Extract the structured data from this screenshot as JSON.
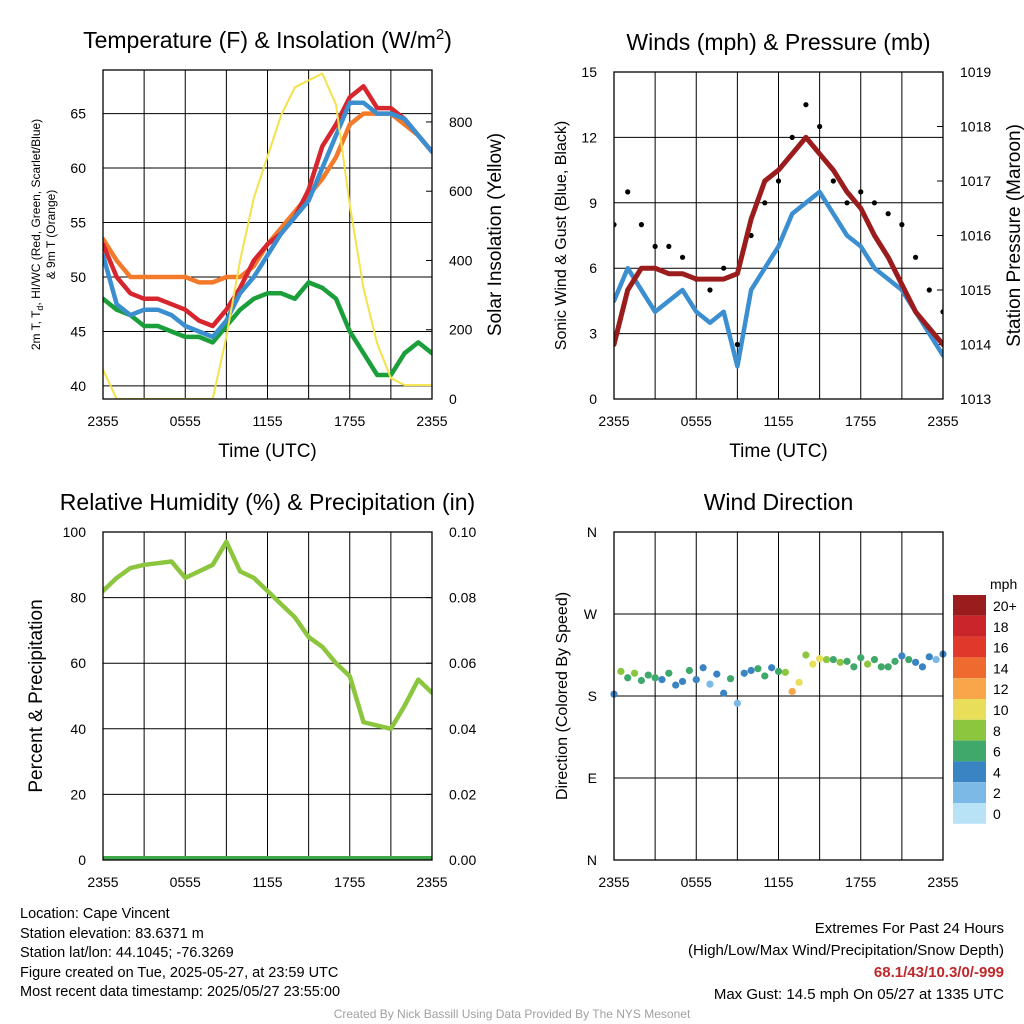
{
  "time_ticks": [
    "2355",
    "0555",
    "1155",
    "1755",
    "2355"
  ],
  "chart_data": [
    {
      "id": "temperature",
      "type": "line",
      "title": "Temperature (F) & Insolation (W/m",
      "title_sup": "2",
      "title_end": ")",
      "xlabel": "Time (UTC)",
      "ylabel_left": [
        "2m T, T",
        "d",
        ", HI/WC (Red, Green, Scarlet/Blue)",
        "& 9m T (Orange)"
      ],
      "ylabel_right": "Solar Insolation (Yellow)",
      "ylim": [
        38.8,
        69
      ],
      "yticks": [
        "40",
        "45",
        "50",
        "55",
        "60",
        "65"
      ],
      "y2lim": [
        0,
        950
      ],
      "y2ticks": [
        "0",
        "200",
        "400",
        "600",
        "800"
      ],
      "x": [
        0,
        1,
        2,
        3,
        4,
        5,
        6,
        7,
        8,
        9,
        10,
        11,
        12,
        13,
        14,
        15,
        16,
        17,
        18,
        19,
        20,
        21,
        22,
        23,
        24
      ],
      "series": [
        {
          "color": "#1a9f3a",
          "values": [
            48,
            47,
            46.5,
            45.5,
            45.5,
            45,
            44.5,
            44.5,
            44,
            45.5,
            47,
            48,
            48.5,
            48.5,
            48,
            49.5,
            49,
            48,
            45,
            43,
            41,
            41,
            43,
            44,
            43
          ]
        },
        {
          "color": "#f27a2a",
          "values": [
            53.5,
            51.5,
            50,
            50,
            50,
            50,
            50,
            49.5,
            49.5,
            50,
            50,
            51,
            53,
            54.5,
            56,
            57.5,
            59,
            61,
            64,
            65,
            65,
            65,
            64,
            63,
            61.5
          ]
        },
        {
          "color": "#d7262e",
          "values": [
            53,
            50,
            48.5,
            48,
            48,
            47.5,
            47,
            46,
            45.5,
            47,
            49,
            51.5,
            53,
            54,
            55.5,
            58,
            62,
            64,
            66.5,
            67.5,
            65.5,
            65.5,
            64.5,
            63,
            61.5
          ]
        },
        {
          "color": "#3b8ed0",
          "values": [
            52,
            47.5,
            46.5,
            47,
            47,
            46.5,
            45.5,
            45,
            44.5,
            46,
            48.5,
            50,
            52,
            54,
            55.5,
            57,
            60,
            63,
            66,
            66,
            65,
            65,
            64.5,
            63,
            61.5
          ]
        },
        {
          "color": "#f4e24a",
          "axis": "right",
          "values": [
            85,
            0,
            0,
            0,
            0,
            0,
            0,
            0,
            0,
            180,
            400,
            580,
            700,
            820,
            900,
            920,
            940,
            850,
            560,
            320,
            160,
            60,
            40,
            40,
            40
          ]
        }
      ]
    },
    {
      "id": "winds",
      "type": "line",
      "title": "Winds (mph) & Pressure (mb)",
      "xlabel": "Time (UTC)",
      "ylabel_left": "Sonic Wind & Gust (Blue, Black)",
      "ylabel_right": "Station Pressure (Maroon)",
      "ylim": [
        0,
        15
      ],
      "yticks": [
        "0",
        "3",
        "6",
        "9",
        "12",
        "15"
      ],
      "y2lim": [
        1013,
        1019
      ],
      "y2ticks": [
        "1013",
        "1014",
        "1015",
        "1016",
        "1017",
        "1018",
        "1019"
      ],
      "x": [
        0,
        1,
        2,
        3,
        4,
        5,
        6,
        7,
        8,
        9,
        10,
        11,
        12,
        13,
        14,
        15,
        16,
        17,
        18,
        19,
        20,
        21,
        22,
        23,
        24
      ],
      "series": [
        {
          "color": "#3b8ed0",
          "name": "wind",
          "values": [
            4.5,
            6,
            5,
            4,
            4.5,
            5,
            4,
            3.5,
            4,
            1.5,
            5,
            6,
            7,
            8.5,
            9,
            9.5,
            8.5,
            7.5,
            7,
            6,
            5.5,
            5,
            4,
            3,
            2
          ]
        },
        {
          "color": "#000000",
          "name": "gust",
          "type": "scatter",
          "values": [
            8,
            9.5,
            8,
            7,
            7,
            6.5,
            5.5,
            5,
            6,
            2.5,
            7.5,
            9,
            10,
            12,
            13.5,
            12.5,
            10,
            9,
            9.5,
            9,
            8.5,
            8,
            6.5,
            5,
            4
          ]
        },
        {
          "color": "#9b1c1c",
          "axis": "right",
          "values": [
            1014,
            1015,
            1015.4,
            1015.4,
            1015.3,
            1015.3,
            1015.2,
            1015.2,
            1015.2,
            1015.3,
            1016.3,
            1017,
            1017.2,
            1017.5,
            1017.8,
            1017.5,
            1017.2,
            1016.8,
            1016.5,
            1016.0,
            1015.6,
            1015.1,
            1014.6,
            1014.3,
            1014
          ]
        }
      ]
    },
    {
      "id": "humidity",
      "type": "line",
      "title": "Relative Humidity (%) & Precipitation (in)",
      "ylabel_left": "Percent & Precipitation",
      "ylim": [
        0,
        100
      ],
      "yticks": [
        "0",
        "20",
        "40",
        "60",
        "80",
        "100"
      ],
      "y2lim": [
        0,
        0.1
      ],
      "y2ticks": [
        "0.00",
        "0.02",
        "0.04",
        "0.06",
        "0.08",
        "0.10"
      ],
      "x": [
        0,
        1,
        2,
        3,
        4,
        5,
        6,
        7,
        8,
        9,
        10,
        11,
        12,
        13,
        14,
        15,
        16,
        17,
        18,
        19,
        20,
        21,
        22,
        23,
        24
      ],
      "series": [
        {
          "color": "#8cc63f",
          "values": [
            82,
            86,
            89,
            90,
            90.5,
            91,
            86,
            88,
            90,
            97,
            88,
            86,
            82,
            78,
            74,
            68,
            65,
            60,
            56,
            42,
            41,
            40,
            47,
            55,
            51
          ]
        },
        {
          "color": "#3fa84a",
          "axis": "right",
          "values": [
            0,
            0,
            0,
            0,
            0,
            0,
            0,
            0,
            0,
            0,
            0,
            0,
            0,
            0,
            0,
            0,
            0,
            0,
            0,
            0,
            0,
            0,
            0,
            0,
            0
          ]
        }
      ]
    },
    {
      "id": "direction",
      "type": "scatter",
      "title": "Wind Direction",
      "ylabel_left": "Direction (Colored By Speed)",
      "yticks": [
        "N",
        "E",
        "S",
        "W",
        "N"
      ],
      "ylim": [
        0,
        360
      ],
      "legend": {
        "title": "mph",
        "labels": [
          "20+",
          "18",
          "16",
          "14",
          "12",
          "10",
          "8",
          "6",
          "4",
          "2",
          "0"
        ],
        "colors": [
          "#9b1c1c",
          "#c9252b",
          "#e0392b",
          "#ef6a2e",
          "#f9a54a",
          "#e8de5a",
          "#8cc63f",
          "#3fa86a",
          "#3a84c4",
          "#7cb9e6",
          "#b8e2f6"
        ]
      },
      "x": [
        0,
        0.5,
        1,
        1.5,
        2,
        2.5,
        3,
        3.5,
        4,
        4.5,
        5,
        5.5,
        6,
        6.5,
        7,
        7.5,
        8,
        8.5,
        9,
        9.5,
        10,
        10.5,
        11,
        11.5,
        12,
        12.5,
        13,
        13.5,
        14,
        14.5,
        15,
        15.5,
        16,
        16.5,
        17,
        17.5,
        18,
        18.5,
        19,
        19.5,
        20,
        20.5,
        21,
        21.5,
        22,
        22.5,
        23,
        23.5,
        24
      ],
      "values": [
        182,
        207,
        200,
        205,
        197,
        203,
        200,
        198,
        205,
        192,
        196,
        208,
        198,
        211,
        193,
        204,
        183,
        199,
        172,
        205,
        208,
        210,
        202,
        211,
        207,
        206,
        185,
        195,
        225,
        215,
        221,
        220,
        220,
        217,
        218,
        212,
        222,
        215,
        220,
        212,
        212,
        218,
        224,
        220,
        217,
        212,
        223,
        220,
        226
      ],
      "speeds": [
        4,
        8,
        6,
        7,
        6,
        5,
        6,
        4,
        5,
        3,
        4,
        5,
        4,
        3,
        2,
        4,
        4,
        5,
        2,
        3,
        4,
        5,
        5,
        4,
        6,
        7,
        11,
        9,
        7,
        10,
        9,
        8,
        6,
        7,
        6,
        6,
        5,
        7,
        6,
        5,
        6,
        5,
        4,
        5,
        3,
        4,
        3,
        2,
        3
      ]
    }
  ],
  "info_left": [
    "Location: Cape Vincent",
    "Station elevation: 83.6371 m",
    "Station lat/lon: 44.1045; -76.3269",
    "Figure created on Tue, 2025-05-27, at 23:59 UTC",
    "Most recent data timestamp: 2025/05/27 23:55:00"
  ],
  "extremes": {
    "title": "Extremes For Past 24 Hours",
    "subtitle": "(High/Low/Max Wind/Precipitation/Snow Depth)",
    "values": "68.1/43/10.3/0/-999",
    "max_gust": "Max Gust: 14.5 mph On 05/27 at 1335 UTC"
  },
  "credit": "Created By Nick Bassill Using Data Provided By The NYS Mesonet"
}
